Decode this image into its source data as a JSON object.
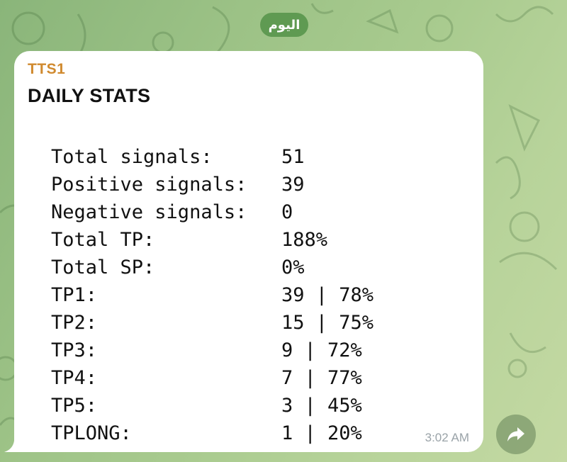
{
  "chat": {
    "date_label": "اليوم"
  },
  "message": {
    "sender": "TTS1",
    "title": "DAILY STATS",
    "stats": [
      {
        "label": "Total signals:",
        "value": "51"
      },
      {
        "label": "Positive signals:",
        "value": "39"
      },
      {
        "label": "Negative signals:",
        "value": "0"
      },
      {
        "label": "Total TP:",
        "value": "188%"
      },
      {
        "label": "Total SP:",
        "value": "0%"
      },
      {
        "label": "TP1:",
        "value": "39 | 78%"
      },
      {
        "label": "TP2:",
        "value": "15 | 75%"
      },
      {
        "label": "TP3:",
        "value": "9 | 72%"
      },
      {
        "label": "TP4:",
        "value": "7 | 77%"
      },
      {
        "label": "TP5:",
        "value": "3 | 45%"
      },
      {
        "label": "TPLONG:",
        "value": "1 | 20%"
      }
    ],
    "time": "3:02 AM"
  },
  "actions": {
    "forward_icon": "forward-arrow-icon"
  },
  "colors": {
    "sender_name": "#d08a2f",
    "bubble": "#ffffff",
    "date_pill": "#5f9a52",
    "background": "#a9cb8f"
  }
}
